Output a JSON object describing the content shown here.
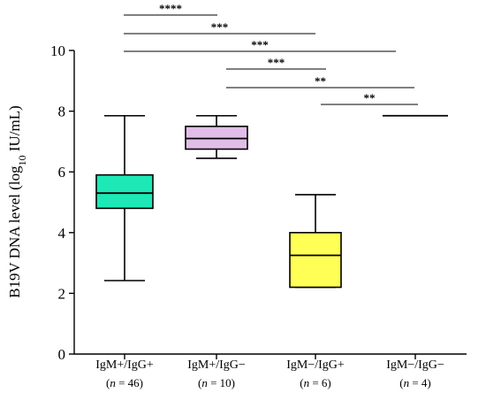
{
  "chart_data": {
    "type": "box",
    "ylabel_parts": [
      "B19V DNA level (log",
      "10",
      " IU/mL)"
    ],
    "ylim": [
      0,
      10
    ],
    "yticks": [
      "0",
      "2",
      "4",
      "6",
      "8",
      "10"
    ],
    "groups": [
      {
        "label": "IgM+/IgG+",
        "n_prefix": "(",
        "n_var": "n",
        "n_text": " = 46)",
        "color": "#1de9b6",
        "min": 2.42,
        "q1": 4.8,
        "median": 5.3,
        "q3": 5.9,
        "max": 7.85
      },
      {
        "label": "IgM+/IgG−",
        "n_prefix": "(",
        "n_var": "n",
        "n_text": " = 10)",
        "color": "#e1bee7",
        "min": 6.45,
        "q1": 6.75,
        "median": 7.1,
        "q3": 7.5,
        "max": 7.85
      },
      {
        "label": "IgM−/IgG+",
        "n_prefix": "(",
        "n_var": "n",
        "n_text": " = 6)",
        "color": "#ffff55",
        "min": 2.2,
        "q1": 2.2,
        "median": 3.25,
        "q3": 4.0,
        "max": 5.25
      },
      {
        "label": "IgM−/IgG−",
        "n_prefix": "(",
        "n_var": "n",
        "n_text": " = 4)",
        "color": "#ffffff",
        "min": 7.85,
        "q1": 7.85,
        "median": 7.85,
        "q3": 7.85,
        "max": 7.85
      }
    ],
    "comparisons": [
      {
        "from": 0,
        "to": 1,
        "label": "****"
      },
      {
        "from": 0,
        "to": 2,
        "label": "***"
      },
      {
        "from": 0,
        "to": 3,
        "label": "***"
      },
      {
        "from": 1,
        "to": 2,
        "label": "***"
      },
      {
        "from": 1,
        "to": 3,
        "label": "**"
      },
      {
        "from": 2,
        "to": 3,
        "label": "**"
      }
    ]
  }
}
